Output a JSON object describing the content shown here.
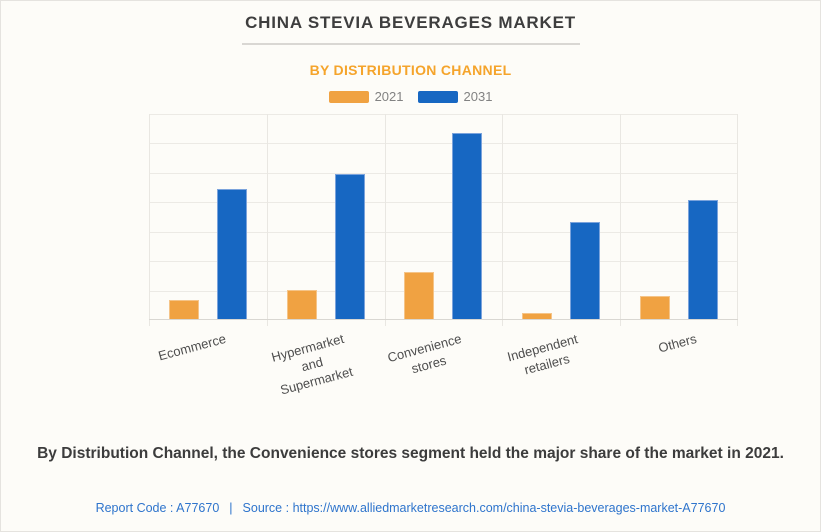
{
  "page": {
    "title": "CHINA STEVIA BEVERAGES MARKET",
    "subtitle": "BY DISTRIBUTION CHANNEL",
    "description": "By Distribution Channel, the Convenience stores segment held the major share of the market in 2021.",
    "footer": {
      "report_code": "Report Code : A77670",
      "separator": "|",
      "source_prefix": "Source :",
      "source_url": "https://www.alliedmarketresearch.com/china-stevia-beverages-market-A77670"
    }
  },
  "legend": {
    "items": [
      {
        "label": "2021",
        "color": "#F0A242"
      },
      {
        "label": "2031",
        "color": "#1767C2"
      }
    ]
  },
  "colors": {
    "background": "#FDFCF8",
    "title_text": "#3E3E3E",
    "subtitle_accent": "#F5A42B",
    "series_2021": "#F0A242",
    "series_2031": "#1767C2",
    "footer_link": "#2E74CC",
    "gridline": "#ECEAE5"
  },
  "chart_data": {
    "type": "bar",
    "title": "CHINA STEVIA BEVERAGES MARKET",
    "subtitle": "BY DISTRIBUTION CHANNEL",
    "categories": [
      "Ecommerce",
      "Hypermarket and Supermarket",
      "Convenience stores",
      "Independent retailers",
      "Others"
    ],
    "x_display": [
      "Ecommerce",
      "Hypermarket and\nSupermarket",
      "Convenience stores",
      "Independent retailers",
      "Others"
    ],
    "series": [
      {
        "name": "2021",
        "color": "#F0A242",
        "values": [
          0.65,
          1.0,
          1.6,
          0.2,
          0.8
        ]
      },
      {
        "name": "2031",
        "color": "#1767C2",
        "values": [
          4.45,
          4.95,
          6.35,
          3.3,
          4.05
        ]
      }
    ],
    "xlabel": "",
    "ylabel": "",
    "ylim": [
      0,
      7
    ],
    "gridline_step": 1,
    "grid": true,
    "legend_position": "top",
    "y_axis_labels_visible": false,
    "note": "Y axis shows no numeric tick labels; values estimated in gridline units (1 unit = one horizontal gridline interval)."
  }
}
